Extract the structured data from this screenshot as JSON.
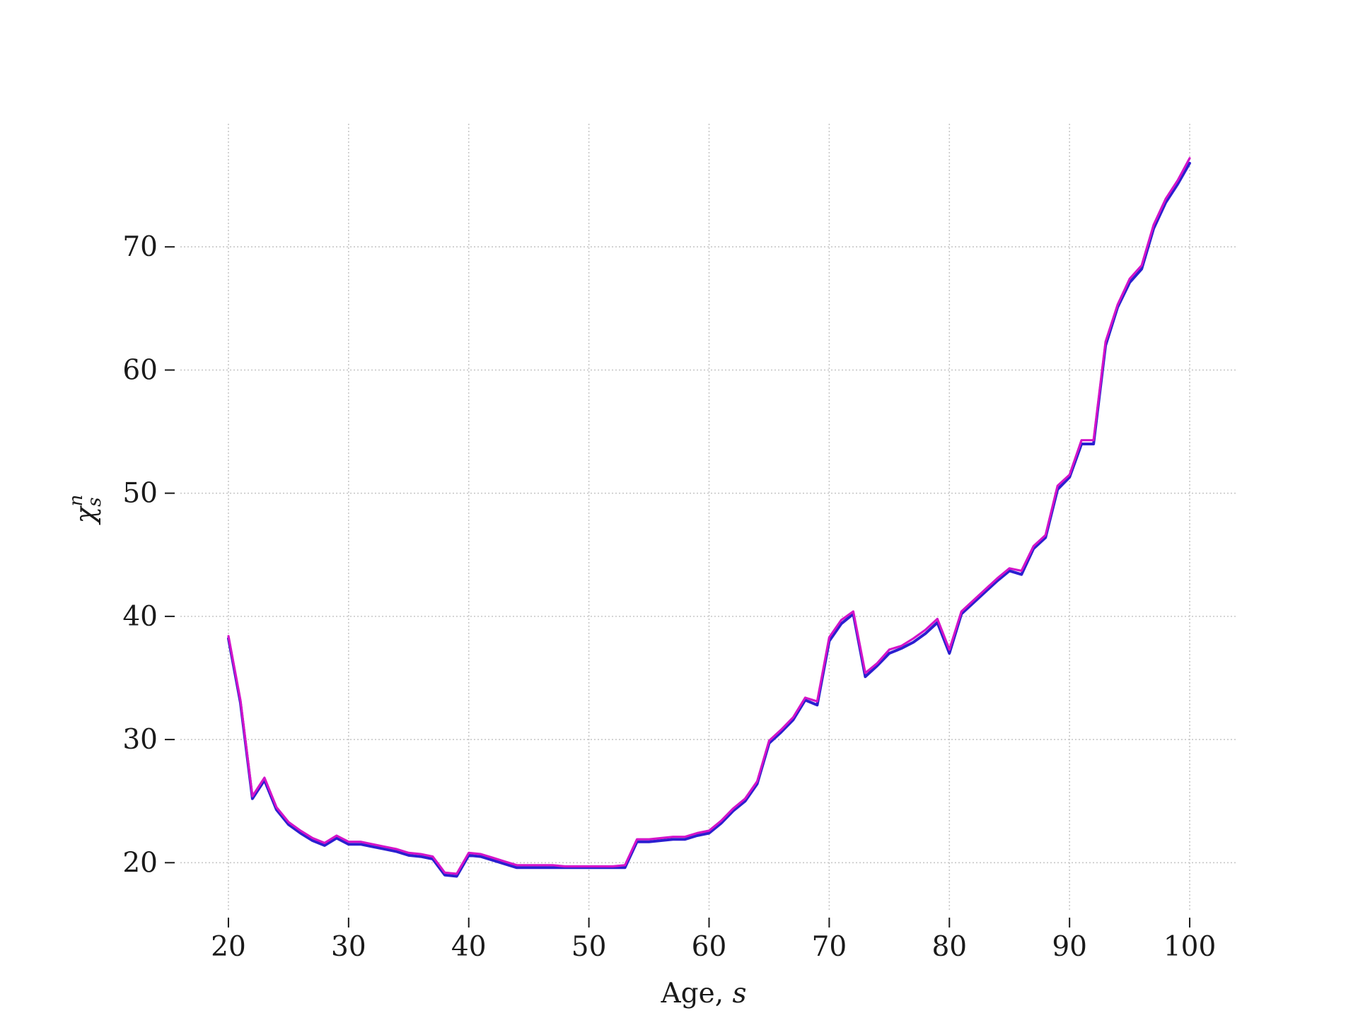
{
  "chart_data": {
    "type": "line",
    "title": "",
    "xlabel": "Age, ",
    "xlabel_var": "s",
    "ylabel_symbol": "χ",
    "ylabel_sub": "s",
    "ylabel_sup": "n",
    "xlim": [
      16,
      104
    ],
    "ylim": [
      16,
      80
    ],
    "xticks": [
      20,
      30,
      40,
      50,
      60,
      70,
      80,
      90,
      100
    ],
    "yticks": [
      20,
      30,
      40,
      50,
      60,
      70
    ],
    "grid": true,
    "series": [
      {
        "color": "#2b1fd0",
        "x": [
          20,
          21,
          22,
          23,
          24,
          25,
          26,
          27,
          28,
          29,
          30,
          31,
          32,
          33,
          34,
          35,
          36,
          37,
          38,
          39,
          40,
          41,
          42,
          43,
          44,
          45,
          46,
          47,
          48,
          49,
          50,
          51,
          52,
          53,
          54,
          55,
          56,
          57,
          58,
          59,
          60,
          61,
          62,
          63,
          64,
          65,
          66,
          67,
          68,
          69,
          70,
          71,
          72,
          73,
          74,
          75,
          76,
          77,
          78,
          79,
          80,
          81,
          82,
          83,
          84,
          85,
          86,
          87,
          88,
          89,
          90,
          91,
          92,
          93,
          94,
          95,
          96,
          97,
          98,
          99,
          100
        ],
        "y": [
          38.2,
          33.0,
          25.2,
          26.7,
          24.3,
          23.1,
          22.4,
          21.8,
          21.4,
          22.0,
          21.5,
          21.5,
          21.3,
          21.1,
          20.9,
          20.6,
          20.5,
          20.3,
          19.0,
          18.9,
          20.6,
          20.5,
          20.2,
          19.9,
          19.6,
          19.6,
          19.6,
          19.6,
          19.6,
          19.6,
          19.6,
          19.6,
          19.6,
          19.6,
          21.7,
          21.7,
          21.8,
          21.9,
          21.9,
          22.2,
          22.4,
          23.2,
          24.2,
          25.0,
          26.4,
          29.7,
          30.6,
          31.6,
          33.2,
          32.8,
          38.0,
          39.4,
          40.2,
          35.1,
          36.0,
          37.0,
          37.4,
          37.9,
          38.6,
          39.5,
          37.0,
          40.2,
          41.1,
          42.0,
          42.9,
          43.7,
          43.4,
          45.5,
          46.4,
          50.3,
          51.3,
          54.0,
          54.0,
          62.0,
          65.1,
          67.1,
          68.2,
          71.5,
          73.6,
          75.1,
          76.8
        ]
      },
      {
        "color": "#d414c8",
        "x": [
          20,
          21,
          22,
          23,
          24,
          25,
          26,
          27,
          28,
          29,
          30,
          31,
          32,
          33,
          34,
          35,
          36,
          37,
          38,
          39,
          40,
          41,
          42,
          43,
          44,
          45,
          46,
          47,
          48,
          49,
          50,
          51,
          52,
          53,
          54,
          55,
          56,
          57,
          58,
          59,
          60,
          61,
          62,
          63,
          64,
          65,
          66,
          67,
          68,
          69,
          70,
          71,
          72,
          73,
          74,
          75,
          76,
          77,
          78,
          79,
          80,
          81,
          82,
          83,
          84,
          85,
          86,
          87,
          88,
          89,
          90,
          91,
          92,
          93,
          94,
          95,
          96,
          97,
          98,
          99,
          100
        ],
        "y": [
          38.4,
          33.2,
          25.4,
          26.9,
          24.5,
          23.3,
          22.6,
          22.0,
          21.6,
          22.2,
          21.7,
          21.7,
          21.5,
          21.3,
          21.1,
          20.8,
          20.7,
          20.5,
          19.2,
          19.1,
          20.8,
          20.7,
          20.4,
          20.1,
          19.8,
          19.8,
          19.8,
          19.8,
          19.7,
          19.7,
          19.7,
          19.7,
          19.7,
          19.8,
          21.9,
          21.9,
          22.0,
          22.1,
          22.1,
          22.4,
          22.6,
          23.4,
          24.4,
          25.2,
          26.6,
          29.9,
          30.8,
          31.8,
          33.4,
          33.1,
          38.3,
          39.7,
          40.4,
          35.4,
          36.2,
          37.3,
          37.6,
          38.2,
          38.9,
          39.8,
          37.3,
          40.4,
          41.3,
          42.2,
          43.1,
          43.9,
          43.7,
          45.7,
          46.6,
          50.6,
          51.5,
          54.3,
          54.3,
          62.3,
          65.3,
          67.4,
          68.5,
          71.8,
          73.9,
          75.4,
          77.2
        ]
      }
    ]
  }
}
